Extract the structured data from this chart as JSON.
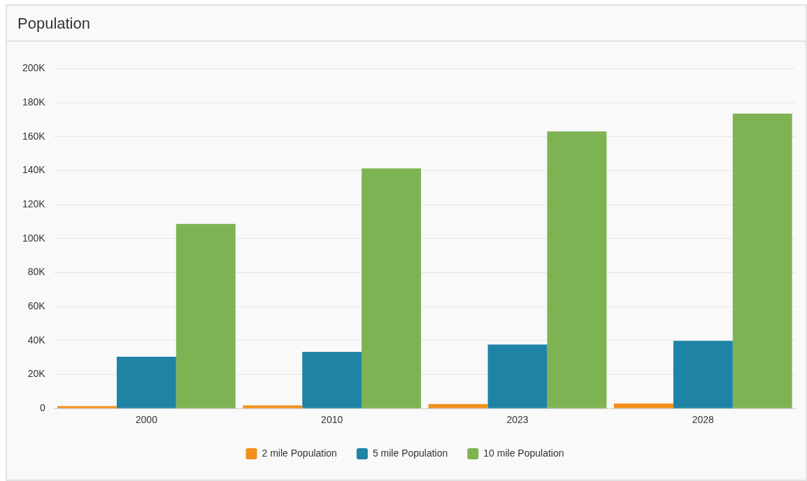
{
  "chart_data": {
    "type": "bar",
    "title": "Population",
    "categories": [
      "2000",
      "2010",
      "2023",
      "2028"
    ],
    "series": [
      {
        "name": "2 mile Population",
        "color": "#f28f1c",
        "values": [
          1400,
          1800,
          2600,
          3000
        ]
      },
      {
        "name": "5 mile Population",
        "color": "#1f83a6",
        "values": [
          30500,
          33400,
          37700,
          39800
        ]
      },
      {
        "name": "10 mile Population",
        "color": "#7db352",
        "values": [
          108600,
          141300,
          163100,
          173600
        ]
      }
    ],
    "ylim": [
      0,
      200000
    ],
    "yticks": [
      0,
      {
        "value": 20000,
        "label": "20K"
      },
      {
        "value": 40000,
        "label": "40K"
      },
      {
        "value": 60000,
        "label": "60K"
      },
      {
        "value": 80000,
        "label": "80K"
      },
      {
        "value": 100000,
        "label": "100K"
      },
      {
        "value": 120000,
        "label": "120K"
      },
      {
        "value": 140000,
        "label": "140K"
      },
      {
        "value": 160000,
        "label": "160K"
      },
      {
        "value": 180000,
        "label": "180K"
      },
      {
        "value": 200000,
        "label": "200K"
      }
    ],
    "grid": "y",
    "legend": "bottom"
  }
}
